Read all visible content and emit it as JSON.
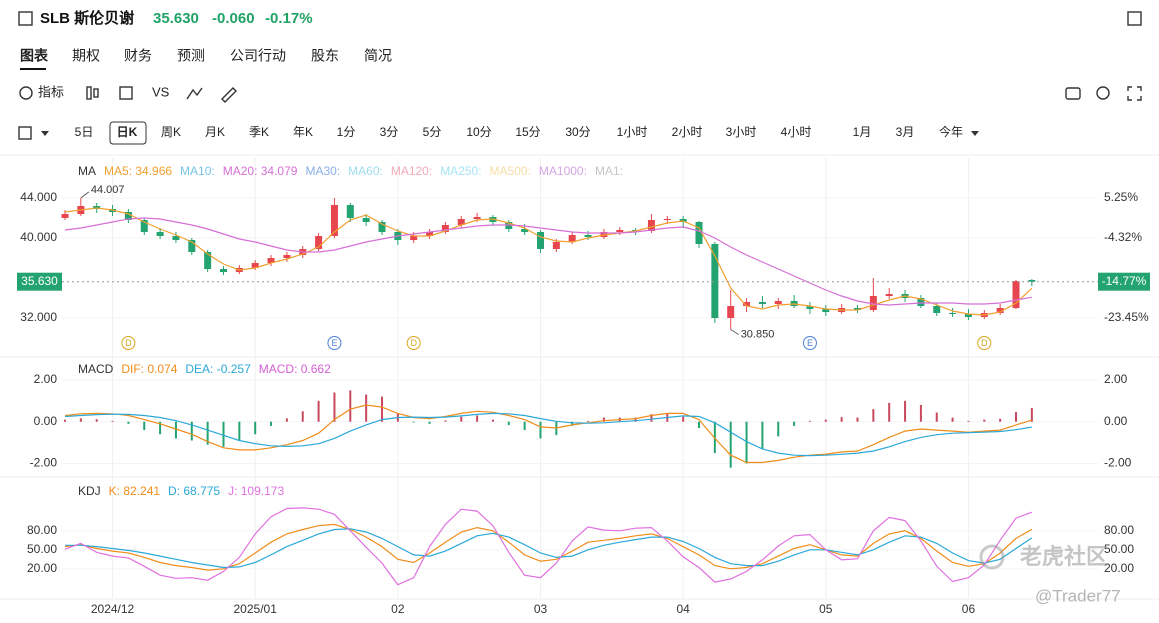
{
  "header": {
    "symbol": "SLB 斯伦贝谢",
    "price": "35.630",
    "change": "-0.060",
    "change_pct": "-0.17%"
  },
  "tabs": [
    "图表",
    "期权",
    "财务",
    "预测",
    "公司行动",
    "股东",
    "简况"
  ],
  "active_tab": 0,
  "toolbar": {
    "indicators": "指标",
    "compare": "VS"
  },
  "periods": [
    "5日",
    "日K",
    "周K",
    "月K",
    "季K",
    "年K",
    "1分",
    "3分",
    "5分",
    "10分",
    "15分",
    "30分",
    "1小时",
    "2小时",
    "3小时",
    "4小时",
    "1月",
    "3月",
    "今年"
  ],
  "active_period": 1,
  "watermark": {
    "brand": "老虎社区",
    "user": "@Trader77"
  },
  "chart_data": [
    {
      "type": "candlestick",
      "legend_title": "MA",
      "up_color": "#e8464f",
      "down_color": "#23a36f",
      "categories": [
        null,
        null,
        null,
        "2024/12",
        null,
        null,
        null,
        null,
        null,
        null,
        null,
        null,
        "2025/01",
        null,
        null,
        null,
        null,
        null,
        null,
        null,
        null,
        "02",
        null,
        null,
        null,
        null,
        null,
        null,
        null,
        null,
        "03",
        null,
        null,
        null,
        null,
        null,
        null,
        null,
        null,
        "04",
        null,
        null,
        null,
        null,
        null,
        null,
        null,
        null,
        "05",
        null,
        null,
        null,
        null,
        null,
        null,
        null,
        null,
        "06",
        null,
        null,
        null,
        null
      ],
      "open": [
        42.0,
        42.4,
        43.2,
        42.9,
        42.6,
        41.8,
        40.6,
        40.2,
        39.8,
        38.6,
        36.9,
        36.6,
        37.0,
        37.5,
        38.0,
        38.3,
        38.9,
        40.2,
        43.3,
        42.0,
        41.6,
        40.6,
        39.8,
        40.2,
        40.6,
        41.3,
        41.9,
        42.1,
        41.6,
        40.9,
        40.6,
        38.9,
        39.6,
        40.3,
        40.1,
        40.6,
        40.8,
        40.7,
        41.8,
        41.9,
        41.6,
        39.4,
        32.0,
        33.2,
        33.6,
        33.4,
        33.7,
        33.2,
        32.9,
        32.6,
        33.0,
        32.8,
        34.2,
        34.4,
        34.0,
        33.2,
        32.5,
        32.4,
        32.1,
        32.5,
        33.0,
        35.8
      ],
      "high": [
        42.8,
        44.007,
        43.5,
        43.3,
        42.9,
        42.0,
        41.0,
        40.6,
        40.0,
        38.8,
        37.2,
        37.3,
        37.8,
        38.3,
        38.6,
        39.2,
        40.5,
        44.0,
        43.5,
        42.4,
        41.8,
        40.9,
        40.6,
        40.9,
        41.6,
        42.2,
        42.5,
        42.3,
        41.8,
        41.4,
        40.8,
        39.9,
        40.6,
        40.7,
        40.9,
        41.1,
        41.0,
        42.4,
        42.2,
        42.2,
        41.7,
        39.6,
        34.8,
        34.0,
        34.2,
        34.0,
        34.3,
        33.6,
        33.3,
        33.4,
        33.3,
        36.0,
        35.0,
        34.8,
        34.3,
        33.5,
        33.0,
        32.9,
        32.8,
        33.4,
        35.8,
        35.9
      ],
      "low": [
        41.8,
        42.2,
        42.5,
        42.2,
        41.5,
        40.3,
        39.9,
        39.5,
        38.3,
        36.6,
        36.3,
        36.4,
        36.8,
        37.2,
        37.6,
        38.0,
        38.7,
        40.0,
        41.6,
        41.2,
        40.3,
        39.3,
        39.5,
        39.9,
        40.4,
        41.0,
        41.6,
        41.3,
        40.6,
        40.3,
        38.5,
        38.6,
        39.4,
        39.8,
        39.9,
        40.3,
        40.3,
        40.5,
        41.4,
        41.0,
        39.0,
        31.5,
        30.85,
        32.6,
        33.0,
        32.9,
        33.0,
        32.4,
        32.2,
        32.4,
        32.5,
        32.6,
        33.9,
        33.6,
        33.0,
        32.2,
        32.1,
        31.8,
        31.9,
        32.3,
        32.9,
        35.2
      ],
      "close": [
        42.4,
        43.2,
        42.9,
        42.6,
        41.8,
        40.6,
        40.2,
        39.8,
        38.6,
        36.9,
        36.6,
        37.0,
        37.5,
        38.0,
        38.3,
        38.9,
        40.2,
        43.3,
        42.0,
        41.6,
        40.6,
        39.8,
        40.2,
        40.6,
        41.3,
        41.9,
        42.1,
        41.6,
        40.9,
        40.6,
        38.9,
        39.6,
        40.3,
        40.1,
        40.6,
        40.8,
        40.7,
        41.8,
        41.9,
        41.6,
        39.4,
        32.0,
        33.2,
        33.6,
        33.4,
        33.7,
        33.2,
        32.9,
        32.6,
        33.0,
        32.8,
        34.2,
        34.4,
        34.0,
        33.2,
        32.5,
        32.4,
        32.1,
        32.5,
        33.0,
        35.69,
        35.63
      ],
      "series": [
        {
          "name": "MA5: 34.966",
          "color": "#f0a030",
          "values": [
            42.6,
            42.8,
            43.0,
            42.8,
            42.4,
            41.6,
            40.9,
            40.3,
            39.6,
            38.4,
            37.4,
            36.8,
            37.0,
            37.5,
            37.9,
            38.4,
            39.1,
            40.6,
            41.8,
            42.3,
            41.4,
            40.7,
            40.2,
            40.2,
            40.7,
            41.3,
            41.8,
            41.9,
            41.5,
            41.0,
            40.1,
            39.7,
            39.6,
            40.0,
            40.3,
            40.5,
            40.7,
            41.1,
            41.5,
            41.7,
            41.0,
            38.2,
            35.0,
            33.2,
            32.9,
            33.3,
            33.4,
            33.2,
            32.9,
            32.8,
            32.8,
            33.3,
            33.8,
            34.2,
            33.9,
            33.3,
            32.7,
            32.4,
            32.3,
            32.6,
            33.5,
            34.966
          ]
        },
        {
          "name": "MA10:",
          "color": "#78c4e8"
        },
        {
          "name": "MA20: 34.079",
          "color": "#d66fd6",
          "values": [
            40.8,
            41.0,
            41.3,
            41.6,
            41.9,
            42.0,
            41.9,
            41.6,
            41.3,
            40.9,
            40.4,
            39.9,
            39.6,
            39.2,
            38.8,
            38.6,
            38.6,
            38.8,
            39.2,
            39.6,
            39.9,
            40.2,
            40.4,
            40.6,
            40.8,
            41.0,
            41.2,
            41.3,
            41.3,
            41.2,
            41.0,
            40.8,
            40.6,
            40.5,
            40.5,
            40.5,
            40.6,
            40.8,
            41.0,
            41.1,
            40.7,
            40.0,
            39.1,
            38.3,
            37.6,
            36.9,
            36.2,
            35.5,
            34.8,
            34.2,
            33.7,
            33.4,
            33.3,
            33.4,
            33.5,
            33.5,
            33.5,
            33.4,
            33.4,
            33.5,
            33.8,
            34.079
          ]
        },
        {
          "name": "MA30:",
          "color": "#8ab0e6"
        },
        {
          "name": "MA60:",
          "color": "#9edcef"
        },
        {
          "name": "MA120:",
          "color": "#f3aab4"
        },
        {
          "name": "MA250:",
          "color": "#a6e4f6"
        },
        {
          "name": "MA500:",
          "color": "#f5dca6"
        },
        {
          "name": "MA1000:",
          "color": "#d4a6e6"
        },
        {
          "name": "MA1:",
          "color": "#c6c6c6"
        }
      ],
      "ylim": [
        28.3,
        47.8
      ],
      "yticks": [
        {
          "value": 44,
          "label": "44.000"
        },
        {
          "value": 40,
          "label": "40.000"
        },
        {
          "value": 32,
          "label": "32.000"
        }
      ],
      "y2ticks": [
        {
          "value": 44,
          "label": "5.25%"
        },
        {
          "value": 40,
          "label": "-4.32%"
        },
        {
          "value": 32,
          "label": "-23.45%"
        }
      ],
      "last": {
        "value": 35.63,
        "label": "35.630",
        "change_label": "-14.77%",
        "color": "#23a36f"
      },
      "annotations": [
        {
          "index": 1,
          "value": 44.007,
          "label": "44.007"
        },
        {
          "index": 42,
          "value": 30.85,
          "label": "30.850"
        }
      ],
      "events": [
        {
          "index": 4,
          "label": "D",
          "color": "#d9a520"
        },
        {
          "index": 17,
          "label": "E",
          "color": "#4a7fd8"
        },
        {
          "index": 22,
          "label": "D",
          "color": "#d9a520"
        },
        {
          "index": 47,
          "label": "E",
          "color": "#4a7fd8"
        },
        {
          "index": 58,
          "label": "D",
          "color": "#d9a520"
        }
      ]
    },
    {
      "type": "macd",
      "legend_title": "MACD",
      "mirror_ticks": true,
      "up_color": "#c8485e",
      "down_color": "#23a36f",
      "series": [
        {
          "name": "DIF: 0.074",
          "color": "#f08c1a",
          "style": "line",
          "values": [
            0.3,
            0.38,
            0.4,
            0.38,
            0.3,
            0.1,
            -0.1,
            -0.35,
            -0.6,
            -0.95,
            -1.25,
            -1.35,
            -1.35,
            -1.25,
            -1.1,
            -0.9,
            -0.55,
            0.1,
            0.6,
            0.8,
            0.7,
            0.4,
            0.2,
            0.15,
            0.25,
            0.4,
            0.5,
            0.45,
            0.3,
            0.1,
            -0.25,
            -0.3,
            -0.15,
            -0.05,
            0.05,
            0.1,
            0.15,
            0.3,
            0.4,
            0.4,
            0.1,
            -0.8,
            -1.6,
            -1.95,
            -1.95,
            -1.85,
            -1.7,
            -1.6,
            -1.55,
            -1.45,
            -1.4,
            -1.1,
            -0.75,
            -0.45,
            -0.35,
            -0.4,
            -0.45,
            -0.5,
            -0.45,
            -0.4,
            -0.15,
            0.074
          ]
        },
        {
          "name": "DEA: -0.257",
          "color": "#2ba8d8",
          "style": "line",
          "values": [
            0.25,
            0.3,
            0.34,
            0.36,
            0.35,
            0.3,
            0.2,
            0.05,
            -0.15,
            -0.4,
            -0.65,
            -0.9,
            -1.05,
            -1.15,
            -1.18,
            -1.15,
            -1.05,
            -0.8,
            -0.45,
            -0.15,
            0.1,
            0.2,
            0.22,
            0.2,
            0.22,
            0.28,
            0.35,
            0.4,
            0.38,
            0.3,
            0.15,
            0.02,
            -0.05,
            -0.07,
            -0.05,
            0.0,
            0.05,
            0.12,
            0.2,
            0.28,
            0.25,
            -0.05,
            -0.5,
            -0.95,
            -1.3,
            -1.5,
            -1.6,
            -1.62,
            -1.6,
            -1.56,
            -1.5,
            -1.4,
            -1.2,
            -0.95,
            -0.75,
            -0.62,
            -0.55,
            -0.52,
            -0.5,
            -0.47,
            -0.38,
            -0.257
          ]
        },
        {
          "name": "MACD: 0.662",
          "color": "#d45fd4",
          "style": "bar",
          "values": [
            0.1,
            0.16,
            0.12,
            0.04,
            -0.1,
            -0.4,
            -0.6,
            -0.8,
            -0.9,
            -1.1,
            -1.2,
            -0.9,
            -0.6,
            -0.2,
            0.16,
            0.5,
            1.0,
            1.4,
            1.5,
            1.3,
            1.2,
            0.4,
            -0.04,
            -0.1,
            0.06,
            0.24,
            0.3,
            0.1,
            -0.16,
            -0.4,
            -0.8,
            -0.64,
            -0.2,
            0.04,
            0.2,
            0.2,
            0.2,
            0.36,
            0.4,
            0.24,
            -0.3,
            -1.5,
            -2.2,
            -2.0,
            -1.3,
            -0.7,
            -0.2,
            0.04,
            0.1,
            0.22,
            0.2,
            0.6,
            0.9,
            1.0,
            0.8,
            0.44,
            0.2,
            0.04,
            0.1,
            0.14,
            0.46,
            0.662
          ]
        }
      ],
      "ylim": [
        -2.55,
        3.05
      ],
      "yticks": [
        {
          "value": 2,
          "label": "2.00"
        },
        {
          "value": 0,
          "label": "0.00"
        },
        {
          "value": -2,
          "label": "-2.00"
        }
      ]
    },
    {
      "type": "line",
      "legend_title": "KDJ",
      "mirror_ticks": true,
      "series": [
        {
          "name": "K: 82.241",
          "color": "#f08c1a",
          "values": [
            55,
            58,
            52,
            48,
            45,
            38,
            30,
            25,
            22,
            18,
            20,
            28,
            45,
            62,
            75,
            82,
            88,
            90,
            82,
            70,
            55,
            35,
            30,
            45,
            62,
            78,
            85,
            80,
            62,
            42,
            32,
            35,
            48,
            62,
            65,
            68,
            72,
            75,
            68,
            55,
            42,
            25,
            20,
            22,
            28,
            40,
            52,
            58,
            50,
            42,
            40,
            60,
            75,
            80,
            68,
            48,
            30,
            24,
            28,
            45,
            68,
            82.241
          ]
        },
        {
          "name": "D: 68.775",
          "color": "#2ba8d8",
          "values": [
            57,
            57,
            55,
            52,
            49,
            45,
            40,
            35,
            30,
            26,
            22,
            23,
            30,
            42,
            55,
            65,
            75,
            82,
            83,
            78,
            68,
            55,
            42,
            40,
            48,
            60,
            72,
            76,
            70,
            58,
            45,
            38,
            40,
            50,
            57,
            62,
            66,
            70,
            70,
            63,
            52,
            38,
            28,
            25,
            25,
            32,
            42,
            50,
            50,
            46,
            42,
            50,
            62,
            72,
            70,
            60,
            45,
            33,
            29,
            35,
            52,
            68.775
          ]
        },
        {
          "name": "J: 109.173",
          "color": "#e070e0",
          "values": [
            51,
            60,
            46,
            40,
            37,
            24,
            10,
            5,
            6,
            2,
            16,
            38,
            75,
            102,
            115,
            116,
            114,
            106,
            80,
            54,
            29,
            -5,
            6,
            55,
            90,
            114,
            111,
            88,
            46,
            10,
            6,
            29,
            64,
            86,
            81,
            80,
            84,
            85,
            64,
            39,
            22,
            -1,
            4,
            16,
            34,
            56,
            72,
            74,
            50,
            34,
            36,
            80,
            101,
            96,
            64,
            24,
            0,
            6,
            26,
            65,
            100,
            109.173
          ]
        }
      ],
      "ylim": [
        -26,
        160
      ],
      "yticks": [
        {
          "value": 80,
          "label": "80.00"
        },
        {
          "value": 50,
          "label": "50.00"
        },
        {
          "value": 20,
          "label": "20.00"
        }
      ]
    }
  ]
}
